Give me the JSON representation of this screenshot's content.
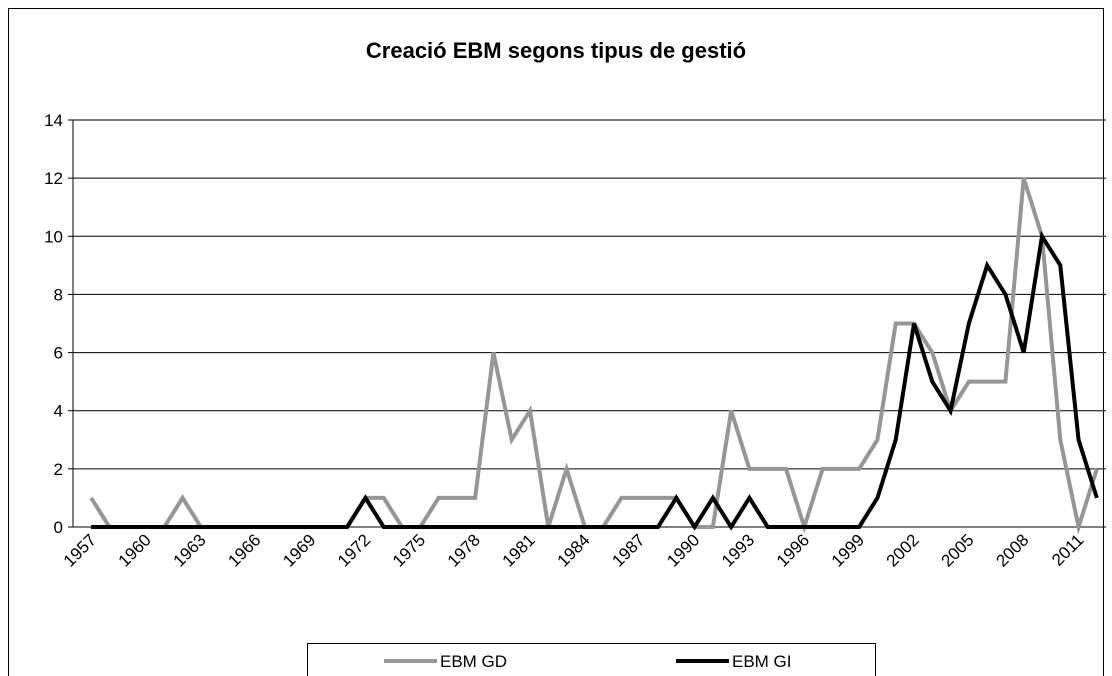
{
  "chart_data": {
    "type": "line",
    "title": "Creació EBM segons tipus de gestió",
    "categories": [
      "1957",
      null,
      null,
      "1960",
      null,
      null,
      "1963",
      null,
      null,
      "1966",
      null,
      null,
      "1969",
      null,
      null,
      "1972",
      null,
      null,
      "1975",
      null,
      null,
      "1978",
      null,
      null,
      "1981",
      null,
      null,
      "1984",
      null,
      null,
      "1987",
      null,
      null,
      "1990",
      null,
      null,
      "1993",
      null,
      null,
      "1996",
      null,
      null,
      "1999",
      null,
      null,
      "2002",
      null,
      null,
      "2005",
      null,
      null,
      "2008",
      null,
      null,
      "2011",
      null
    ],
    "series": [
      {
        "name": "EBM GD",
        "color": "#969696",
        "values": [
          1,
          0,
          0,
          0,
          0,
          1,
          0,
          0,
          0,
          0,
          0,
          0,
          0,
          0,
          0,
          1,
          1,
          0,
          0,
          1,
          1,
          1,
          6,
          3,
          4,
          0,
          2,
          0,
          0,
          1,
          1,
          1,
          1,
          0,
          0,
          4,
          2,
          2,
          2,
          0,
          2,
          2,
          2,
          3,
          7,
          7,
          6,
          4,
          5,
          5,
          5,
          12,
          10,
          3,
          0,
          2
        ]
      },
      {
        "name": "EBM GI",
        "color": "#000000",
        "values": [
          0,
          0,
          0,
          0,
          0,
          0,
          0,
          0,
          0,
          0,
          0,
          0,
          0,
          0,
          0,
          1,
          0,
          0,
          0,
          0,
          0,
          0,
          0,
          0,
          0,
          0,
          0,
          0,
          0,
          0,
          0,
          0,
          1,
          0,
          1,
          0,
          1,
          0,
          0,
          0,
          0,
          0,
          0,
          1,
          3,
          7,
          5,
          4,
          7,
          9,
          8,
          6,
          10,
          9,
          3,
          1
        ]
      }
    ],
    "ylim": [
      0,
      14
    ],
    "yticks": [
      0,
      2,
      4,
      6,
      8,
      10,
      12,
      14
    ],
    "grid": true,
    "legend": "bottom"
  }
}
